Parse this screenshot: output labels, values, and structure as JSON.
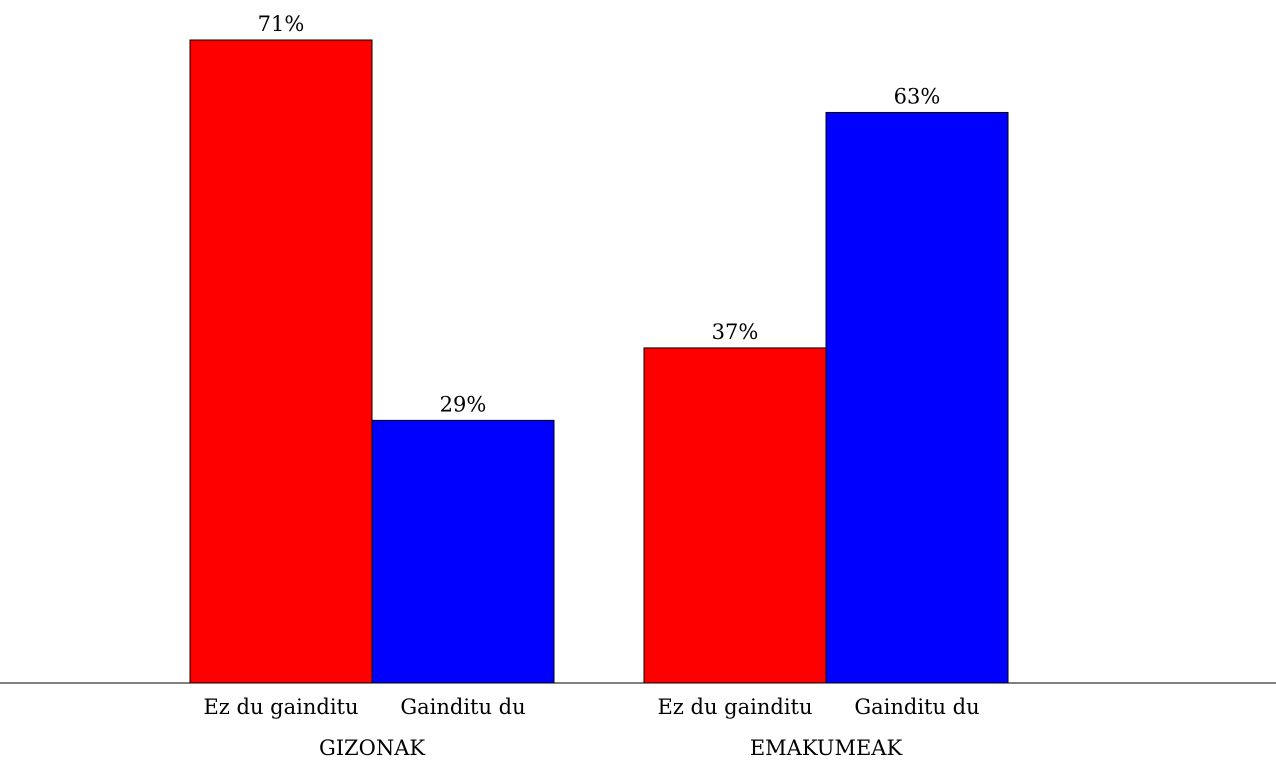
{
  "chart_data": {
    "type": "bar",
    "groups": [
      {
        "label": "GIZONAK",
        "bars": [
          {
            "category": "Ez du gainditu",
            "value": 71,
            "value_label": "71%",
            "color": "#ff0000"
          },
          {
            "category": "Gainditu du",
            "value": 29,
            "value_label": "29%",
            "color": "#0000ff"
          }
        ]
      },
      {
        "label": "EMAKUMEAK",
        "bars": [
          {
            "category": "Ez du gainditu",
            "value": 37,
            "value_label": "37%",
            "color": "#ff0000"
          },
          {
            "category": "Gainditu du",
            "value": 63,
            "value_label": "63%",
            "color": "#0000ff"
          }
        ]
      }
    ],
    "unit": "%",
    "ylim": [
      0,
      71
    ],
    "grid": false,
    "legend": "none"
  }
}
